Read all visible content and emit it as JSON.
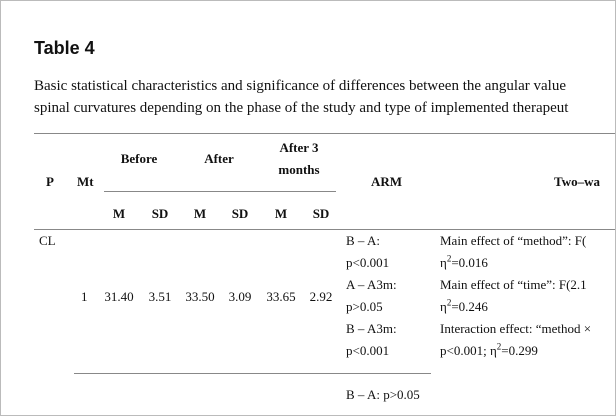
{
  "title": "Table 4",
  "caption": [
    "Basic statistical characteristics and significance of differences between the angular value",
    "spinal curvatures depending on the phase of the study and type of implemented therapeut"
  ],
  "table": {
    "header": {
      "p": "P",
      "mt": "Mt",
      "groups": [
        "Before",
        "After",
        [
          "After 3",
          "months"
        ]
      ],
      "sub": [
        "M",
        "SD",
        "M",
        "SD",
        "M",
        "SD"
      ],
      "arm": "ARM",
      "two_way": "Two–wa"
    },
    "rows": [
      {
        "p": "CL",
        "mt": "1",
        "cells": [
          "31.40",
          "3.51",
          "33.50",
          "3.09",
          "33.65",
          "2.92"
        ],
        "arm": [
          "B – A:",
          "p<0.001",
          "A – A3m:",
          "p>0.05",
          "B – A3m:",
          "p<0.001"
        ],
        "two_way": [
          [
            "Main effect of “method”: F("
          ],
          [
            "η",
            "2",
            "=0.016"
          ],
          [
            "Main effect of “time”: F(2.1"
          ],
          [
            "η",
            "2",
            "=0.246"
          ],
          [
            "Interaction effect: “method ×"
          ],
          [
            "p<0.001; η",
            "2",
            "=0.299"
          ]
        ]
      },
      {
        "arm": [
          "B – A: p>0.05"
        ]
      }
    ]
  }
}
